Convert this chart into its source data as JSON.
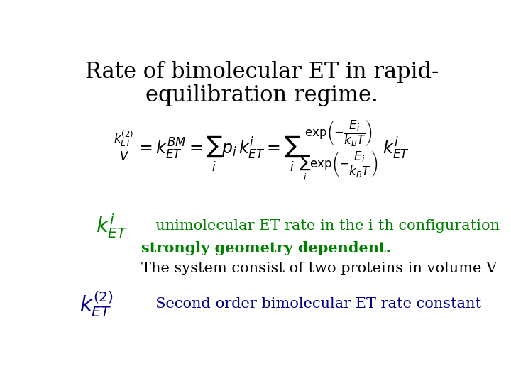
{
  "title_line1": "Rate of bimolecular ET in rapid-",
  "title_line2": "equilibration regime.",
  "title_fontsize": 22,
  "title_color": "#000000",
  "bg_color": "#ffffff",
  "label1_text": " - unimolecular ET rate in the i-th configuration",
  "label1_text2": "strongly geometry dependent.",
  "label1_text3": "The system consist of two proteins in volume V",
  "label2_text": " - Second-order bimolecular ET rate constant",
  "green_color": "#008000",
  "blue_color": "#00008B",
  "black_color": "#000000",
  "formula_fontsize": 17,
  "label_fontsize": 15,
  "small_fontsize": 15
}
